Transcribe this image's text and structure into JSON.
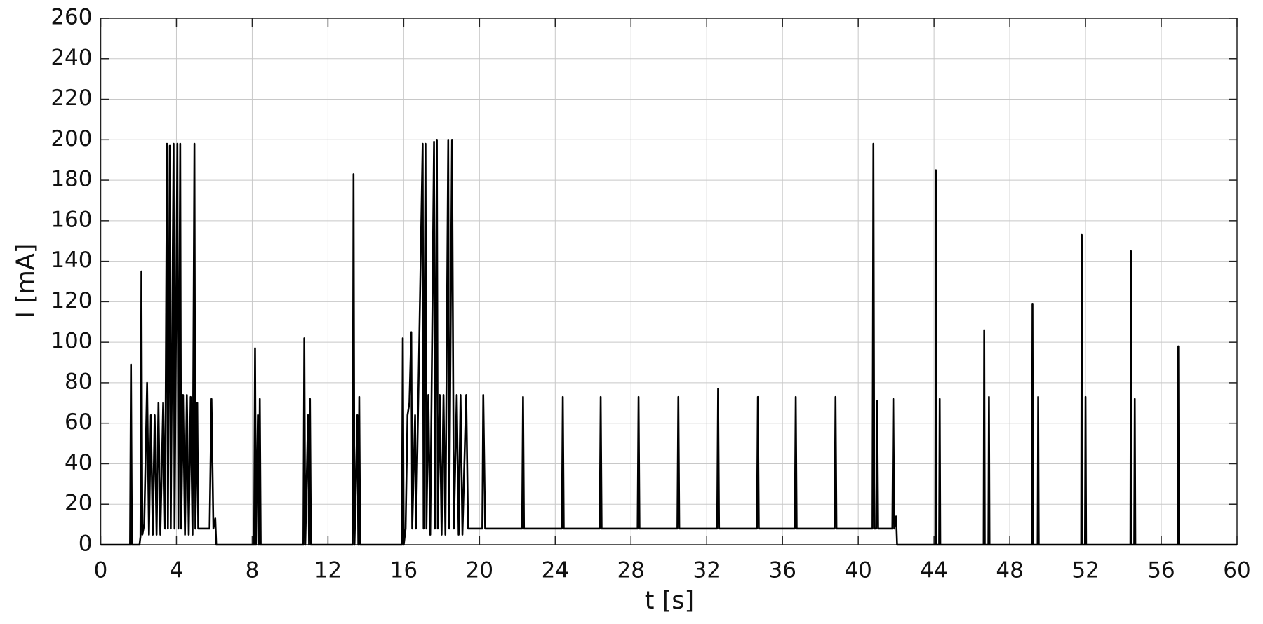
{
  "chart_data": {
    "type": "line",
    "xlabel": "t [s]",
    "ylabel": "I [mA]",
    "x": [
      0,
      1.55,
      1.6,
      1.65,
      2.05,
      2.1,
      2.15,
      2.2,
      2.3,
      2.45,
      2.55,
      2.65,
      2.75,
      2.85,
      2.95,
      3.05,
      3.15,
      3.3,
      3.4,
      3.5,
      3.55,
      3.65,
      3.7,
      3.85,
      3.9,
      4.05,
      4.1,
      4.2,
      4.25,
      4.35,
      4.45,
      4.55,
      4.65,
      4.75,
      4.85,
      4.95,
      5.0,
      5.1,
      5.15,
      5.75,
      5.85,
      5.95,
      6.05,
      6.1,
      8.1,
      8.15,
      8.2,
      8.3,
      8.35,
      8.4,
      8.45,
      10.7,
      10.75,
      10.8,
      10.95,
      11.0,
      11.05,
      11.1,
      13.3,
      13.35,
      13.4,
      13.55,
      13.6,
      13.65,
      13.7,
      15.9,
      15.95,
      16.0,
      16.1,
      16.2,
      16.3,
      16.4,
      16.45,
      16.6,
      16.65,
      17.0,
      17.05,
      17.15,
      17.2,
      17.3,
      17.4,
      17.6,
      17.65,
      17.75,
      17.8,
      17.9,
      18.0,
      18.1,
      18.2,
      18.35,
      18.4,
      18.55,
      18.65,
      18.8,
      18.9,
      19.0,
      19.1,
      19.3,
      19.4,
      20.15,
      20.2,
      20.3,
      22.25,
      22.3,
      22.35,
      24.35,
      24.4,
      24.45,
      26.35,
      26.4,
      26.45,
      28.35,
      28.4,
      28.45,
      30.45,
      30.5,
      30.55,
      32.55,
      32.6,
      32.65,
      34.65,
      34.7,
      34.75,
      36.65,
      36.7,
      36.75,
      38.75,
      38.8,
      38.85,
      40.75,
      40.8,
      40.85,
      40.95,
      41.0,
      41.05,
      41.8,
      41.85,
      41.9,
      42.0,
      42.05,
      44.07,
      44.1,
      44.13,
      44.27,
      44.3,
      44.33,
      46.62,
      46.65,
      46.68,
      46.87,
      46.9,
      46.93,
      49.17,
      49.2,
      49.23,
      49.47,
      49.5,
      49.53,
      51.77,
      51.8,
      51.83,
      51.97,
      52.0,
      52.03,
      54.37,
      54.4,
      54.43,
      54.57,
      54.6,
      54.63,
      56.87,
      56.9,
      56.93,
      60
    ],
    "series": [
      {
        "color": "#000000",
        "values": [
          0,
          0,
          89,
          0,
          0,
          4,
          135,
          5,
          10,
          80,
          5,
          64,
          5,
          64,
          5,
          70,
          5,
          70,
          8,
          198,
          8,
          197,
          8,
          198,
          8,
          198,
          8,
          198,
          8,
          74,
          5,
          74,
          5,
          73,
          5,
          198,
          8,
          70,
          8,
          8,
          72,
          8,
          13,
          0,
          0,
          97,
          0,
          64,
          0,
          72,
          0,
          0,
          102,
          0,
          64,
          0,
          72,
          0,
          0,
          183,
          0,
          64,
          0,
          73,
          0,
          0,
          102,
          0,
          8,
          64,
          70,
          105,
          8,
          64,
          8,
          198,
          8,
          198,
          8,
          74,
          5,
          199,
          8,
          200,
          8,
          74,
          5,
          74,
          5,
          200,
          8,
          200,
          8,
          74,
          5,
          74,
          5,
          74,
          8,
          8,
          74,
          8,
          8,
          73,
          8,
          8,
          73,
          8,
          8,
          73,
          8,
          8,
          73,
          8,
          8,
          73,
          8,
          8,
          77,
          8,
          8,
          73,
          8,
          8,
          73,
          8,
          8,
          73,
          8,
          8,
          198,
          8,
          8,
          71,
          8,
          8,
          72,
          8,
          14,
          0,
          0,
          185,
          0,
          0,
          72,
          0,
          0,
          106,
          0,
          0,
          73,
          0,
          0,
          119,
          0,
          0,
          73,
          0,
          0,
          153,
          0,
          0,
          73,
          0,
          0,
          145,
          0,
          0,
          72,
          0,
          0,
          98,
          0,
          0
        ]
      }
    ],
    "xlim": [
      0,
      60
    ],
    "xticks": [
      0,
      4,
      8,
      12,
      16,
      20,
      24,
      28,
      32,
      36,
      40,
      44,
      48,
      52,
      56,
      60
    ],
    "ylim": [
      0,
      260
    ],
    "yticks": [
      0,
      20,
      40,
      60,
      80,
      100,
      120,
      140,
      160,
      180,
      200,
      220,
      240,
      260
    ],
    "grid": true
  }
}
